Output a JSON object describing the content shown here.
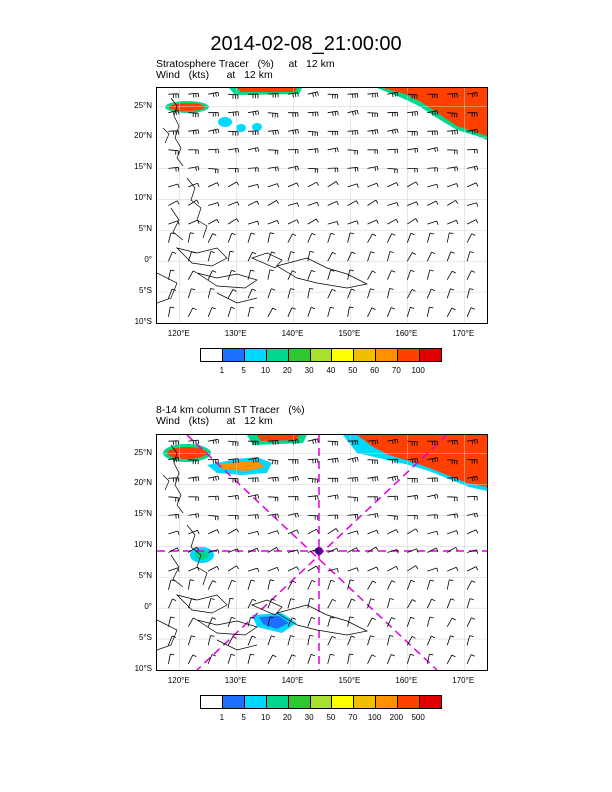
{
  "title": "2014-02-08_21:00:00",
  "panels": [
    {
      "line1": "Stratosphere Tracer   (%)     at   12 km",
      "line2": "Wind   (kts)      at   12 km",
      "lat_labels": [
        "25°N",
        "20°N",
        "15°N",
        "10°N",
        "5°N",
        "0°",
        "5°S",
        "10°S"
      ],
      "lon_labels": [
        "120°E",
        "130°E",
        "140°E",
        "150°E",
        "160°E",
        "170°E"
      ],
      "colorbar_labels": [
        "1",
        "5",
        "10",
        "20",
        "30",
        "40",
        "50",
        "60",
        "70",
        "100"
      ],
      "colorbar_colors": [
        "#ffffff",
        "#1e6fff",
        "#00d8ff",
        "#00d890",
        "#30c830",
        "#a8e030",
        "#ffff00",
        "#f0c000",
        "#ff9000",
        "#ff4000",
        "#e00000"
      ]
    },
    {
      "line1": "8-14 km column ST Tracer   (%)",
      "line2": "Wind   (kts)      at   12 km",
      "lat_labels": [
        "25°N",
        "20°N",
        "15°N",
        "10°N",
        "5°N",
        "0°",
        "5°S",
        "10°S"
      ],
      "lon_labels": [
        "120°E",
        "130°E",
        "140°E",
        "150°E",
        "160°E",
        "170°E"
      ],
      "colorbar_labels": [
        "1",
        "5",
        "10",
        "20",
        "30",
        "50",
        "70",
        "100",
        "200",
        "500"
      ],
      "colorbar_colors": [
        "#ffffff",
        "#1e6fff",
        "#00d8ff",
        "#00d890",
        "#30c830",
        "#a8e030",
        "#ffff00",
        "#f0c000",
        "#ff9000",
        "#ff4000",
        "#e00000"
      ]
    }
  ]
}
